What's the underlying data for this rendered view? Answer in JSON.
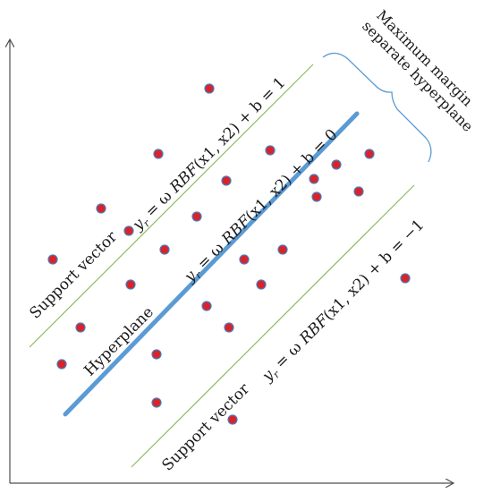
{
  "labels": {
    "max_margin_line1": "Maximum margin",
    "max_margin_line2": "separate hyperplane",
    "hyperplane": "Hyperplane",
    "support_vector_upper": "Support vector",
    "support_vector_lower": "Support vector"
  },
  "equations": {
    "upper": {
      "lhs": "y",
      "sub": "r",
      "mid": " = ω ",
      "fn": "RBF",
      "args": "(x1, x2)",
      "tail": " + b = 1"
    },
    "center": {
      "lhs": "y",
      "sub": "r",
      "mid": " = ω ",
      "fn": "RBF",
      "args": "(x1, x2)",
      "tail": " + b = 0"
    },
    "lower": {
      "lhs": "y",
      "sub": "r",
      "mid": " = ω ",
      "fn": "RBF",
      "args": "(x1, x2)",
      "tail": " + b = −1"
    }
  },
  "colors": {
    "axis": "#4d4d4d",
    "hyperplane": "#5b9bd5",
    "margin_lines": "#8fbc5a",
    "brace": "#5b9bd5",
    "point_fill": "#d9232a",
    "point_stroke": "#4a7dbb"
  }
}
